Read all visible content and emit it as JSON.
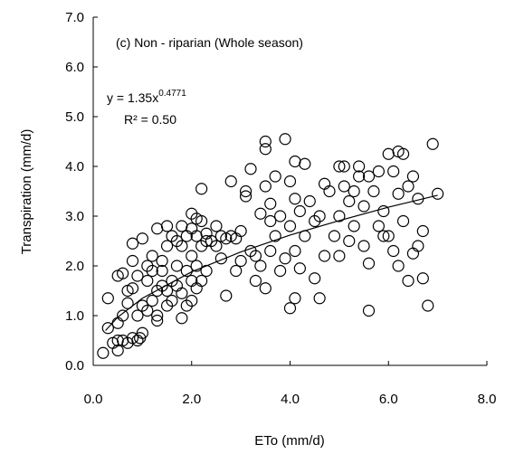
{
  "chart_data": {
    "type": "scatter",
    "xlabel": "ETo (mm/d)",
    "ylabel": "Transpiration (mm/d)",
    "annotations": {
      "panel": "(c) Non - riparian (Whole season)",
      "equation": {
        "text": "y = 1.35x",
        "superscript": "0.4771"
      },
      "r2": "R² = 0.50"
    },
    "xlim": [
      0,
      8
    ],
    "ylim": [
      0,
      7
    ],
    "xticks": [
      {
        "value": 0,
        "label": "0.0"
      },
      {
        "value": 2,
        "label": "2.0"
      },
      {
        "value": 4,
        "label": "4.0"
      },
      {
        "value": 6,
        "label": "6.0"
      },
      {
        "value": 8,
        "label": "8.0"
      }
    ],
    "yticks": [
      {
        "value": 0,
        "label": "0.0"
      },
      {
        "value": 1,
        "label": "1.0"
      },
      {
        "value": 2,
        "label": "2.0"
      },
      {
        "value": 3,
        "label": "3.0"
      },
      {
        "value": 4,
        "label": "4.0"
      },
      {
        "value": 5,
        "label": "5.0"
      },
      {
        "value": 6,
        "label": "6.0"
      },
      {
        "value": 7,
        "label": "7.0"
      }
    ],
    "grid": false,
    "series": [
      {
        "color": "#000000",
        "x": [
          0.2,
          0.3,
          0.3,
          0.4,
          0.5,
          0.5,
          0.5,
          0.5,
          0.6,
          0.6,
          0.6,
          0.7,
          0.7,
          0.7,
          0.8,
          0.8,
          0.8,
          0.8,
          0.9,
          0.9,
          0.9,
          0.95,
          1.0,
          1.0,
          1.0,
          1.1,
          1.1,
          1.1,
          1.2,
          1.2,
          1.2,
          1.3,
          1.3,
          1.3,
          1.3,
          1.4,
          1.4,
          1.4,
          1.5,
          1.5,
          1.5,
          1.5,
          1.6,
          1.6,
          1.6,
          1.7,
          1.7,
          1.7,
          1.8,
          1.8,
          1.8,
          1.8,
          1.9,
          1.9,
          1.9,
          2.0,
          2.0,
          2.0,
          2.0,
          2.0,
          2.1,
          2.1,
          2.1,
          2.1,
          2.2,
          2.2,
          2.2,
          2.2,
          2.3,
          2.3,
          2.3,
          2.4,
          2.5,
          2.5,
          2.6,
          2.6,
          2.7,
          2.7,
          2.8,
          2.8,
          2.9,
          2.9,
          3.0,
          3.0,
          3.1,
          3.1,
          3.2,
          3.2,
          3.3,
          3.3,
          3.4,
          3.4,
          3.5,
          3.5,
          3.5,
          3.5,
          3.6,
          3.6,
          3.6,
          3.7,
          3.7,
          3.8,
          3.8,
          3.9,
          3.9,
          4.0,
          4.0,
          4.0,
          4.1,
          4.1,
          4.1,
          4.1,
          4.2,
          4.2,
          4.3,
          4.3,
          4.4,
          4.5,
          4.5,
          4.6,
          4.6,
          4.7,
          4.7,
          4.8,
          4.9,
          5.0,
          5.0,
          5.0,
          5.1,
          5.1,
          5.2,
          5.2,
          5.3,
          5.3,
          5.4,
          5.4,
          5.5,
          5.5,
          5.6,
          5.6,
          5.6,
          5.7,
          5.8,
          5.8,
          5.9,
          5.9,
          6.0,
          6.0,
          6.1,
          6.1,
          6.2,
          6.2,
          6.2,
          6.3,
          6.3,
          6.4,
          6.4,
          6.5,
          6.5,
          6.6,
          6.6,
          6.7,
          6.7,
          6.8,
          6.9,
          7.0
        ],
        "values": [
          0.25,
          0.75,
          1.35,
          0.45,
          0.5,
          0.3,
          0.85,
          1.8,
          1.0,
          0.5,
          1.85,
          0.45,
          1.25,
          1.5,
          1.55,
          2.1,
          2.45,
          0.55,
          1.0,
          1.8,
          0.5,
          0.55,
          2.55,
          1.2,
          0.65,
          1.7,
          2.0,
          1.1,
          1.9,
          2.2,
          1.3,
          2.75,
          1.5,
          1.0,
          0.9,
          2.1,
          1.9,
          1.6,
          2.8,
          2.4,
          1.5,
          1.2,
          2.6,
          1.3,
          1.7,
          2.5,
          2.0,
          1.6,
          2.8,
          2.4,
          1.45,
          0.95,
          2.6,
          1.9,
          1.2,
          3.05,
          2.75,
          2.2,
          1.7,
          1.3,
          2.95,
          2.6,
          2.0,
          1.55,
          3.55,
          2.9,
          2.4,
          1.7,
          2.65,
          2.5,
          1.9,
          2.5,
          2.8,
          2.4,
          2.6,
          2.15,
          2.55,
          1.4,
          2.6,
          3.7,
          2.55,
          1.9,
          2.7,
          2.1,
          3.4,
          3.5,
          3.95,
          2.3,
          1.7,
          2.2,
          3.05,
          2.0,
          4.5,
          4.35,
          3.6,
          1.55,
          2.3,
          3.25,
          2.9,
          2.6,
          3.8,
          1.9,
          3.0,
          4.55,
          2.15,
          3.7,
          2.8,
          1.15,
          4.1,
          3.35,
          2.3,
          1.35,
          1.95,
          3.1,
          4.05,
          2.6,
          3.3,
          1.75,
          2.9,
          1.35,
          3.0,
          2.2,
          3.65,
          3.5,
          2.6,
          4.0,
          3.0,
          2.2,
          4.0,
          3.6,
          3.3,
          2.5,
          3.5,
          2.8,
          4.0,
          3.8,
          2.4,
          3.2,
          2.05,
          1.1,
          3.8,
          3.5,
          2.8,
          3.9,
          2.6,
          3.1,
          4.25,
          2.6,
          3.9,
          2.3,
          4.3,
          3.45,
          2.0,
          4.25,
          2.9,
          3.6,
          1.7,
          3.8,
          2.25,
          3.35,
          2.4,
          2.7,
          1.75,
          1.2,
          4.45,
          3.45
        ]
      },
      {
        "type": "line",
        "color": "#000000",
        "x": [
          0.25,
          0.5,
          1,
          2,
          3,
          4,
          5,
          6,
          7
        ],
        "values": [
          0.7,
          0.97,
          1.35,
          1.88,
          2.28,
          2.62,
          2.91,
          3.18,
          3.42
        ]
      }
    ]
  }
}
